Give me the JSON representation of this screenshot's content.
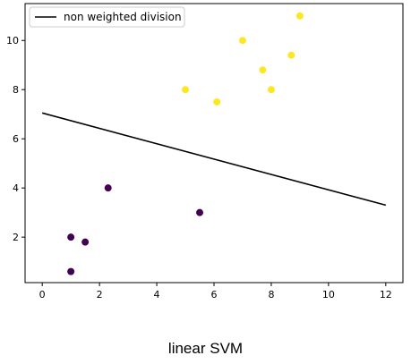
{
  "chart_data": {
    "type": "scatter",
    "xlim": [
      -0.6,
      12.6
    ],
    "ylim": [
      0.15,
      11.5
    ],
    "x_ticks": [
      0,
      2,
      4,
      6,
      8,
      10,
      12
    ],
    "y_ticks": [
      2,
      4,
      6,
      8,
      10
    ],
    "grid": false,
    "legend_placement": "top-left",
    "series": [
      {
        "class": 0,
        "color": "#440154",
        "points": [
          [
            1.0,
            0.6
          ],
          [
            1.0,
            2.0
          ],
          [
            1.5,
            1.8
          ],
          [
            2.3,
            4.0
          ],
          [
            5.5,
            3.0
          ]
        ]
      },
      {
        "class": 1,
        "color": "#fde725",
        "points": [
          [
            5.0,
            8.0
          ],
          [
            6.1,
            7.5
          ],
          [
            7.0,
            10.0
          ],
          [
            7.7,
            8.8
          ],
          [
            8.0,
            8.0
          ],
          [
            8.7,
            9.4
          ],
          [
            9.0,
            11.0
          ]
        ]
      }
    ],
    "line": {
      "name": "non weighted division",
      "color": "#000000",
      "points": [
        [
          0,
          7.05
        ],
        [
          12,
          3.3
        ]
      ]
    }
  },
  "caption": "linear SVM"
}
